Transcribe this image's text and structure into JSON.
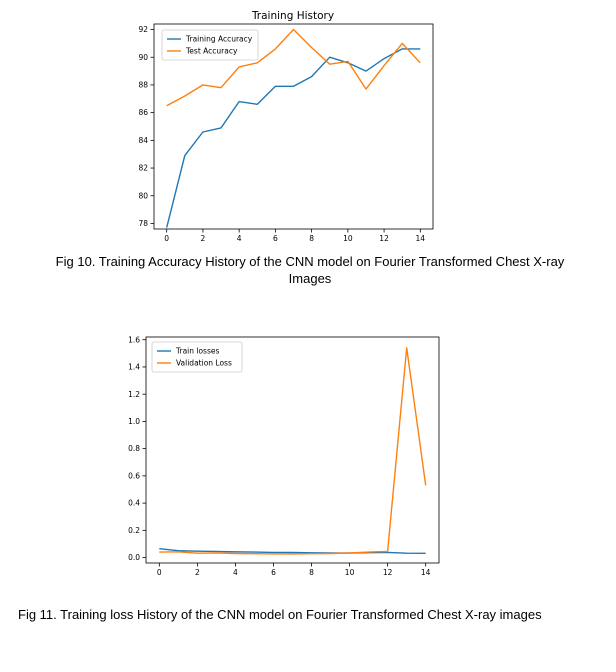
{
  "figures": [
    {
      "caption": "Fig 10. Training Accuracy History of the CNN model on  Fourier Transformed Chest X-ray Images",
      "chart_data": {
        "type": "line",
        "title": "Training History",
        "xlabel": "",
        "ylabel": "",
        "x": [
          0,
          1,
          2,
          3,
          4,
          5,
          6,
          7,
          8,
          9,
          10,
          11,
          12,
          13,
          14
        ],
        "xlim": [
          -0.7,
          14.7
        ],
        "ylim": [
          77.6,
          92.4
        ],
        "xticks": [
          0,
          2,
          4,
          6,
          8,
          10,
          12,
          14
        ],
        "yticks": [
          78,
          80,
          82,
          84,
          86,
          88,
          90,
          92
        ],
        "grid": false,
        "legend_position": "top-left",
        "series": [
          {
            "name": "Training Accuracy",
            "color": "#1f77b4",
            "values": [
              77.7,
              82.9,
              84.6,
              84.9,
              86.8,
              86.6,
              87.9,
              87.9,
              88.6,
              90.0,
              89.6,
              89.0,
              89.9,
              90.6,
              90.6
            ]
          },
          {
            "name": "Test Accuracy",
            "color": "#ff7f0e",
            "values": [
              86.5,
              87.2,
              88.0,
              87.8,
              89.3,
              89.6,
              90.6,
              92.0,
              90.7,
              89.5,
              89.7,
              87.7,
              89.4,
              91.0,
              89.6
            ]
          }
        ]
      }
    },
    {
      "caption": "Fig 11. Training loss History of the CNN model on  Fourier Transformed Chest X-ray images",
      "chart_data": {
        "type": "line",
        "title": "",
        "xlabel": "",
        "ylabel": "",
        "x": [
          0,
          1,
          2,
          3,
          4,
          5,
          6,
          7,
          8,
          9,
          10,
          11,
          12,
          13,
          14
        ],
        "xlim": [
          -0.7,
          14.7
        ],
        "ylim": [
          -0.04,
          1.62
        ],
        "xticks": [
          0,
          2,
          4,
          6,
          8,
          10,
          12,
          14
        ],
        "yticks": [
          0.0,
          0.2,
          0.4,
          0.6,
          0.8,
          1.0,
          1.2,
          1.4,
          1.6
        ],
        "ytick_labels": [
          "0.0",
          "0.2",
          "0.4",
          "0.6",
          "0.8",
          "1.0",
          "1.2",
          "1.4",
          "1.6"
        ],
        "grid": false,
        "legend_position": "top-left",
        "series": [
          {
            "name": "Train losses",
            "color": "#1f77b4",
            "values": [
              0.065,
              0.05,
              0.047,
              0.045,
              0.042,
              0.04,
              0.038,
              0.037,
              0.035,
              0.034,
              0.033,
              0.036,
              0.038,
              0.032,
              0.031
            ]
          },
          {
            "name": "Validation Loss",
            "color": "#ff7f0e",
            "values": [
              0.04,
              0.042,
              0.032,
              0.034,
              0.03,
              0.028,
              0.027,
              0.027,
              0.028,
              0.03,
              0.034,
              0.04,
              0.045,
              1.54,
              0.53
            ]
          }
        ]
      }
    }
  ]
}
